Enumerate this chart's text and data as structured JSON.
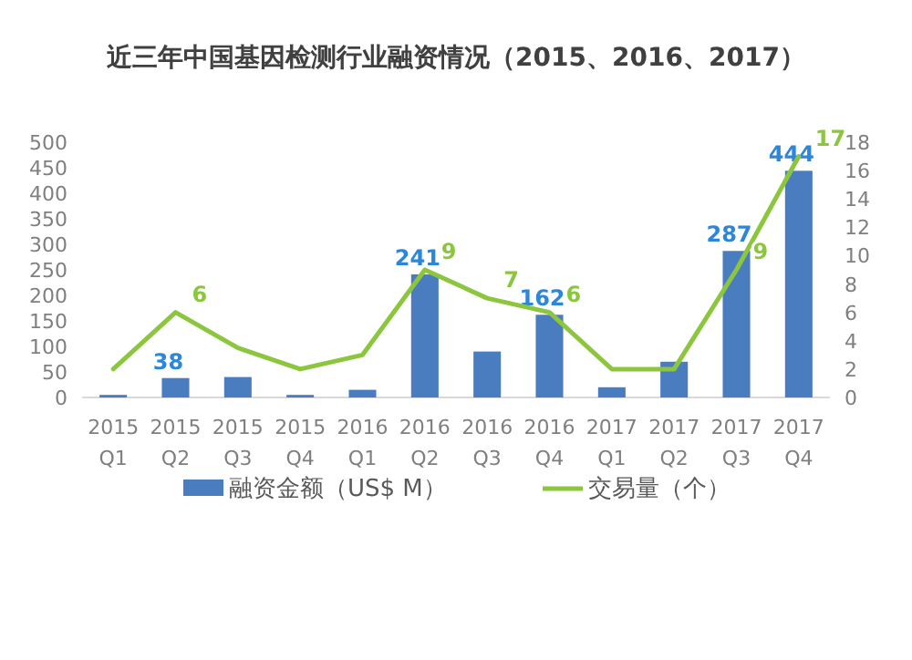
{
  "chart_data": {
    "type": "bar",
    "title": "近三年中国基因检测行业融资情况（2015、2016、2017）",
    "categories": [
      "2015 Q1",
      "2015 Q2",
      "2015 Q3",
      "2015 Q4",
      "2016 Q1",
      "2016 Q2",
      "2016 Q3",
      "2016 Q4",
      "2017 Q1",
      "2017 Q2",
      "2017 Q3",
      "2017 Q4"
    ],
    "series": [
      {
        "name": "融资金额（US$ M）",
        "color": "#4a7cc0",
        "values": [
          5,
          38,
          40,
          5,
          15,
          241,
          90,
          162,
          20,
          70,
          287,
          444
        ],
        "value_labels": [
          null,
          "38",
          null,
          null,
          null,
          "241",
          null,
          "162",
          null,
          null,
          "287",
          "444"
        ]
      },
      {
        "name": "交易量（个）",
        "type": "line",
        "axis": "y2",
        "color": "#8cc63f",
        "values": [
          2,
          6,
          3.5,
          2,
          3,
          9,
          7,
          6,
          2,
          2,
          9,
          17
        ],
        "value_labels": [
          null,
          "6",
          null,
          null,
          null,
          "9",
          "7",
          "6",
          null,
          null,
          "9",
          "17"
        ]
      }
    ],
    "ylim": [
      0,
      500
    ],
    "yticks": [
      0,
      50,
      100,
      150,
      200,
      250,
      300,
      350,
      400,
      450,
      500
    ],
    "y2lim": [
      0,
      18
    ],
    "y2ticks": [
      0,
      2,
      4,
      6,
      8,
      10,
      12,
      14,
      16,
      18
    ],
    "legend": "bottom"
  }
}
